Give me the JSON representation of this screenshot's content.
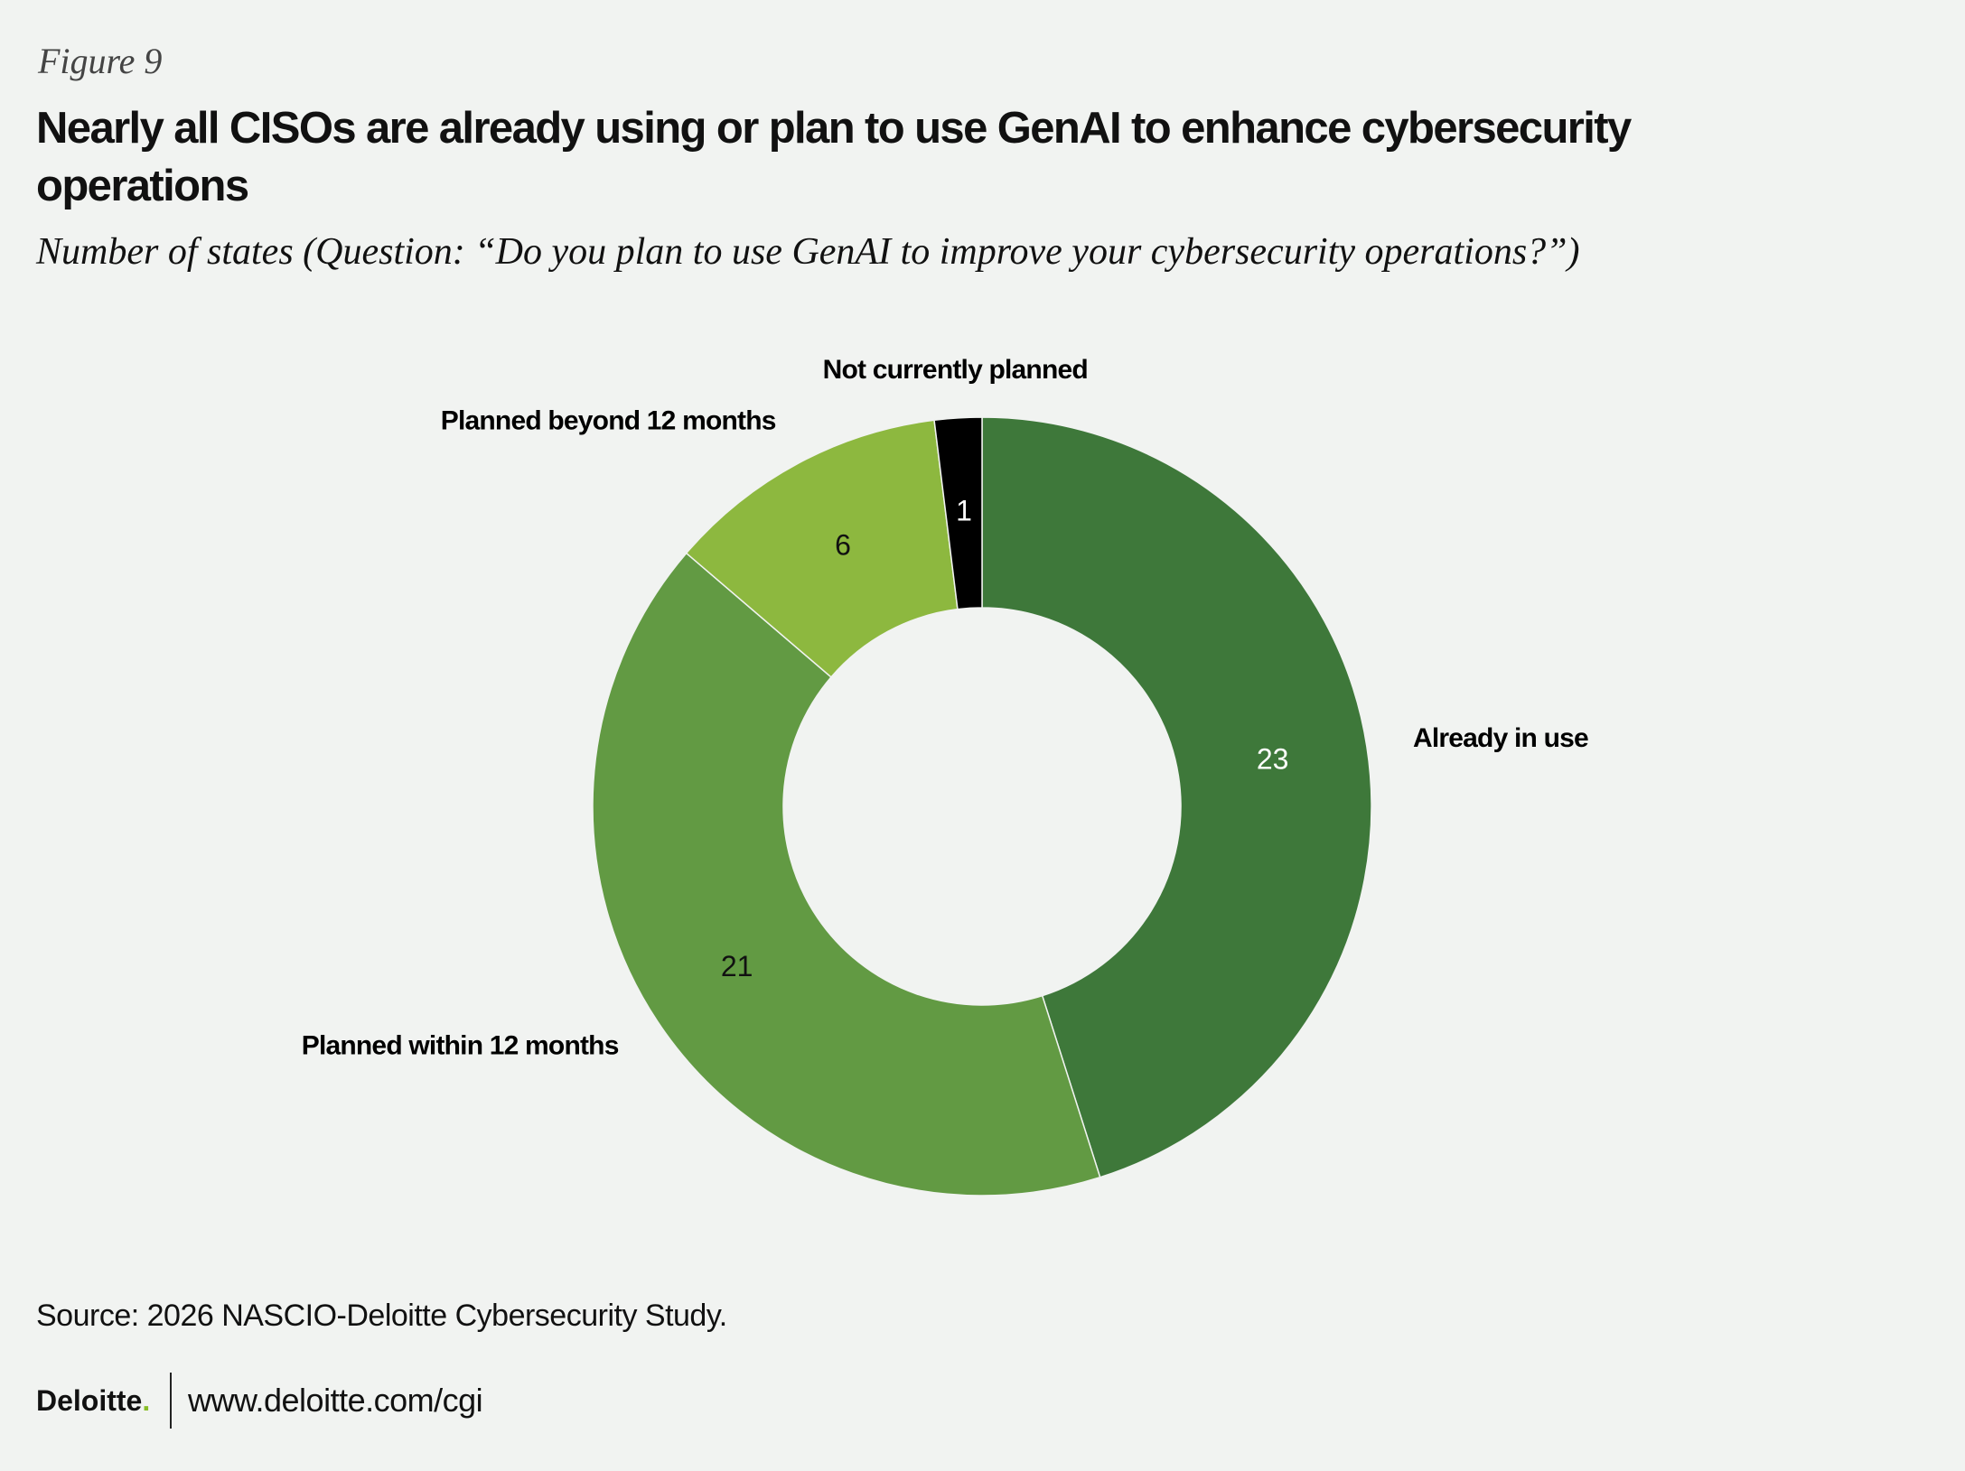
{
  "header": {
    "figure": "Figure 9"
  },
  "chart_data": {
    "type": "pie",
    "title": "Nearly all CISOs are already using or plan to use GenAI to enhance cybersecurity operations",
    "subtitle": "Number of states (Question: “Do you plan to use GenAI to improve your cybersecurity operations?”)",
    "categories": [
      "Already in use",
      "Planned within 12 months",
      "Planned beyond 12 months",
      "Not currently planned"
    ],
    "values": [
      23,
      21,
      6,
      1
    ],
    "colors": [
      "#3e783a",
      "#629a43",
      "#8db83f",
      "#000000"
    ],
    "donut": true
  },
  "footer": {
    "source": "Source: 2026 NASCIO-Deloitte Cybersecurity Study.",
    "brand": "Deloitte",
    "url": "www.deloitte.com/cgi"
  }
}
